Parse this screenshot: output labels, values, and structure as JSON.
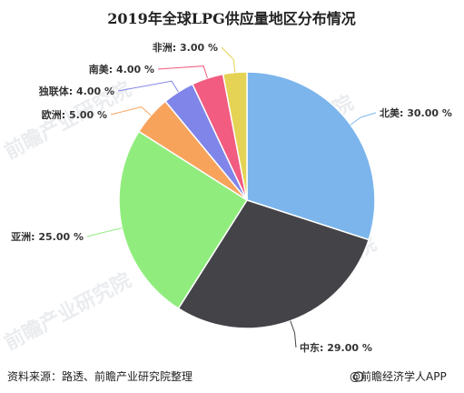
{
  "chart_data": {
    "type": "pie",
    "title": "2019年全球LPG供应量地区分布情况",
    "slices": [
      {
        "label": "北美",
        "value": 30.0,
        "value_text": "30.00 %",
        "color": "#7cb5ec"
      },
      {
        "label": "中东",
        "value": 29.0,
        "value_text": "29.00 %",
        "color": "#434348"
      },
      {
        "label": "亚洲",
        "value": 25.0,
        "value_text": "25.00 %",
        "color": "#90ed7d"
      },
      {
        "label": "欧洲",
        "value": 5.0,
        "value_text": "5.00 %",
        "color": "#f7a35c"
      },
      {
        "label": "独联体",
        "value": 4.0,
        "value_text": "4.00 %",
        "color": "#8085e9"
      },
      {
        "label": "南美",
        "value": 4.0,
        "value_text": "4.00 %",
        "color": "#f15c80"
      },
      {
        "label": "非洲",
        "value": 3.0,
        "value_text": "3.00 %",
        "color": "#e4d354"
      }
    ],
    "legend": "none",
    "start_angle": "12 o'clock, clockwise"
  },
  "footer": {
    "source": "资料来源：路透、前瞻产业研究院整理",
    "brand": "@前瞻经济学人APP"
  },
  "watermark": {
    "text": "前瞻产业研究院"
  }
}
